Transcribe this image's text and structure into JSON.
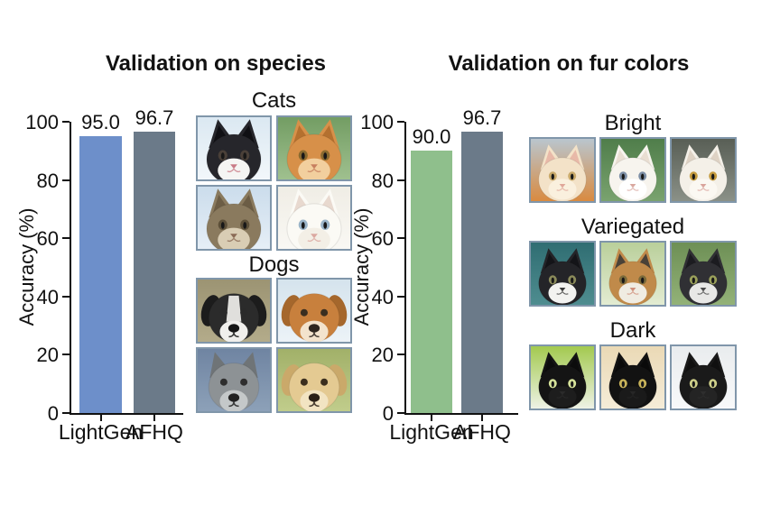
{
  "style": {
    "background": "#ffffff",
    "text_color": "#111111",
    "axis_color": "#111111",
    "photo_frame_color": "#8096aa"
  },
  "chart_data": [
    {
      "id": "species",
      "type": "bar",
      "title": "Validation on species",
      "categories": [
        "LightGen",
        "AFHQ"
      ],
      "values": [
        95.0,
        96.7
      ],
      "value_labels": [
        "95.0",
        "96.7"
      ],
      "bar_colors": [
        "#6d8fca",
        "#6b7a89"
      ],
      "xlabel": "",
      "ylabel": "Accuracy (%)",
      "ylim": [
        0,
        100
      ],
      "yticks": [
        0,
        20,
        40,
        60,
        80,
        100
      ],
      "grid": false,
      "legend": "none"
    },
    {
      "id": "fur_colors",
      "type": "bar",
      "title": "Validation on fur colors",
      "categories": [
        "LightGen",
        "AFHQ"
      ],
      "values": [
        90.0,
        96.7
      ],
      "value_labels": [
        "90.0",
        "96.7"
      ],
      "bar_colors": [
        "#8fbf8c",
        "#6b7a89"
      ],
      "xlabel": "",
      "ylabel": "Accuracy (%)",
      "ylim": [
        0,
        100
      ],
      "yticks": [
        0,
        20,
        40,
        60,
        80,
        100
      ],
      "grid": false,
      "legend": "none"
    }
  ],
  "galleries": {
    "species": {
      "groups": [
        {
          "label": "Cats",
          "columns": 2,
          "images": [
            {
              "name": "tuxedo-cat-photo",
              "kind": "cat",
              "bg": [
                "#d9e7f1",
                "#f4f8fb"
              ],
              "fur": "#26262b",
              "patch": "#f5f5f3",
              "ear": "#101014",
              "eye": "#4a4038",
              "nose": "#c97b86"
            },
            {
              "name": "orange-tabby-cat-photo",
              "kind": "cat",
              "bg": [
                "#6f9a60",
                "#a3c392"
              ],
              "fur": "#d79049",
              "patch": "#f2cf9e",
              "ear": "#b4702f",
              "eye": "#8a6a2f",
              "nose": "#c77f5f"
            },
            {
              "name": "brown-tabby-cat-photo",
              "kind": "cat",
              "bg": [
                "#c9dbeb",
                "#e8f0f7"
              ],
              "fur": "#8a7a5e",
              "patch": "#d9cdb4",
              "ear": "#6c5d45",
              "eye": "#5c4f38",
              "nose": "#8a6a55"
            },
            {
              "name": "white-cat-photo",
              "kind": "cat",
              "bg": [
                "#efece4",
                "#faf9f5"
              ],
              "fur": "#fbfaf5",
              "patch": "#f3efe6",
              "ear": "#e8d9cf",
              "eye": "#9ab4c8",
              "nose": "#dba8a0"
            }
          ]
        },
        {
          "label": "Dogs",
          "columns": 2,
          "images": [
            {
              "name": "black-white-dog-photo",
              "kind": "dog",
              "bg": [
                "#9a9271",
                "#b5ad8c"
              ],
              "fur": "#2b2b2b",
              "patch": "#f0efec",
              "ear": "#1c1c1c",
              "eye": "#2a2a2a",
              "nose": "#161616",
              "blaze": true
            },
            {
              "name": "fluffy-brown-dog-photo",
              "kind": "dog",
              "bg": [
                "#d3e2ec",
                "#eef4f8"
              ],
              "fur": "#c8803d",
              "patch": "#f3e3cd",
              "ear": "#a5672c",
              "eye": "#3a2e20",
              "nose": "#2e2620"
            },
            {
              "name": "gray-wolf-dog-photo",
              "kind": "dog",
              "bg": [
                "#6d82a0",
                "#8fa3ba"
              ],
              "fur": "#8d9295",
              "patch": "#c4c8c9",
              "ear": "#6f7477",
              "eye": "#2e2e2e",
              "nose": "#222222",
              "pointy": true
            },
            {
              "name": "golden-retriever-photo",
              "kind": "dog",
              "bg": [
                "#9fae66",
                "#c3cf8e"
              ],
              "fur": "#e4ca92",
              "patch": "#f2e4c2",
              "ear": "#caa96a",
              "eye": "#3b2f1f",
              "nose": "#2b2118"
            }
          ]
        }
      ]
    },
    "fur_colors": {
      "groups": [
        {
          "label": "Bright",
          "columns": 3,
          "images": [
            {
              "name": "cream-kitten-photo",
              "kind": "cat",
              "bg": [
                "#b9c6cf",
                "#d98a3f"
              ],
              "fur": "#f3e2c8",
              "patch": "#faf0de",
              "ear": "#e8b9a8",
              "eye": "#c9a96a",
              "nose": "#e0a79a"
            },
            {
              "name": "white-longhair-cat-photo",
              "kind": "cat",
              "bg": [
                "#4f7d4a",
                "#7aa36f"
              ],
              "fur": "#f7f4ee",
              "patch": "#ffffff",
              "ear": "#e9ded2",
              "eye": "#7d8fa6",
              "nose": "#d9a8a0"
            },
            {
              "name": "white-cat-gold-eyes-photo",
              "kind": "cat",
              "bg": [
                "#585e55",
                "#8b9188"
              ],
              "fur": "#f4f0e8",
              "patch": "#fbf8f2",
              "ear": "#ded2c4",
              "eye": "#c59b3f",
              "nose": "#d9a49c"
            }
          ]
        },
        {
          "label": "Variegated",
          "columns": 3,
          "images": [
            {
              "name": "tuxedo-cat-teal-photo",
              "kind": "cat",
              "bg": [
                "#2f6d72",
                "#4f8d90"
              ],
              "fur": "#242428",
              "patch": "#f2f2f0",
              "ear": "#141418",
              "eye": "#8a8a5a",
              "nose": "#3a3a3a"
            },
            {
              "name": "calico-cat-photo",
              "kind": "cat",
              "bg": [
                "#b9cf9a",
                "#e3ecd2"
              ],
              "fur": "#c08a4a",
              "patch": "#f0ece2",
              "ear": "#4a4238",
              "eye": "#7a6a3a",
              "nose": "#cf8f7a"
            },
            {
              "name": "black-white-cat-photo",
              "kind": "cat",
              "bg": [
                "#6d8f55",
                "#93b278"
              ],
              "fur": "#303034",
              "patch": "#e8e8e6",
              "ear": "#1c1c20",
              "eye": "#9aa05a",
              "nose": "#4a4a4a"
            }
          ]
        },
        {
          "label": "Dark",
          "columns": 3,
          "images": [
            {
              "name": "black-cat-green-bg-photo",
              "kind": "cat",
              "bg": [
                "#a2c94e",
                "#eef2e6"
              ],
              "fur": "#141414",
              "patch": "#1d1d1d",
              "ear": "#0c0c0c",
              "eye": "#d6e39a",
              "nose": "#2a2a2a"
            },
            {
              "name": "black-cat-tan-bg-photo",
              "kind": "cat",
              "bg": [
                "#ead9b5",
                "#f5ecd8"
              ],
              "fur": "#121212",
              "patch": "#1a1a1a",
              "ear": "#0a0a0a",
              "eye": "#c9b45a",
              "nose": "#262626"
            },
            {
              "name": "black-longhair-cat-photo",
              "kind": "cat",
              "bg": [
                "#e9ecee",
                "#f8f9fa"
              ],
              "fur": "#1a1a1a",
              "patch": "#242424",
              "ear": "#101010",
              "eye": "#cfd08a",
              "nose": "#2e2e2e"
            }
          ]
        }
      ]
    }
  }
}
